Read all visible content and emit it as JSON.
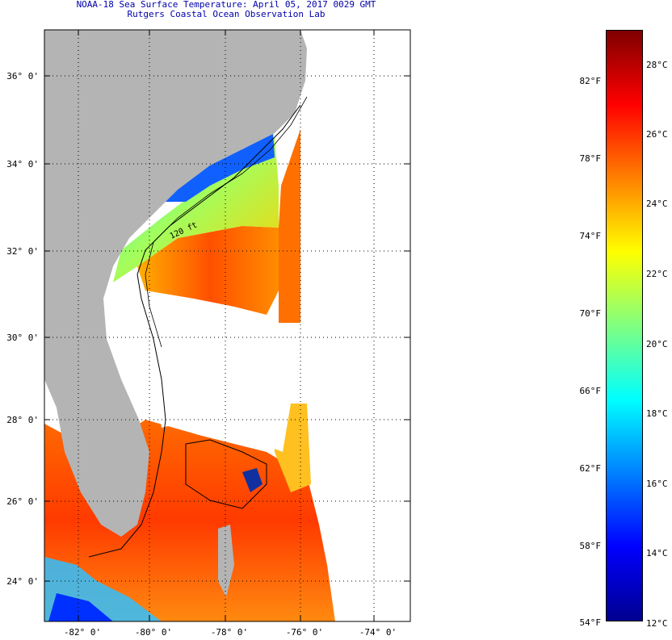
{
  "header": {
    "title": "NOAA-18 Sea Surface Temperature:  April 05, 2017 0029 GMT",
    "subtitle": "Rutgers Coastal Ocean Observation Lab"
  },
  "map": {
    "latitude_labels": [
      "36° 0'",
      "34° 0'",
      "32° 0'",
      "30° 0'",
      "28° 0'",
      "26° 0'",
      "24° 0'"
    ],
    "longitude_labels": [
      "-82° 0'",
      "-80° 0'",
      "-78° 0'",
      "-76° 0'",
      "-74° 0'"
    ],
    "isobath_label": "120 ft",
    "colors": {
      "land": "#b4b4b4",
      "cloud": "#ffffff",
      "warm": "#ff5a00",
      "cool": "#0a50ff"
    }
  },
  "colorbar": {
    "fahrenheit_labels": [
      "82°F",
      "78°F",
      "74°F",
      "70°F",
      "66°F",
      "62°F",
      "58°F",
      "54°F"
    ],
    "celsius_labels": [
      "28°C",
      "26°C",
      "24°C",
      "22°C",
      "20°C",
      "18°C",
      "16°C",
      "14°C",
      "12°C"
    ],
    "gradient_stops": [
      "#7f0000",
      "#ff0000",
      "#ff8000",
      "#ffff00",
      "#80ff80",
      "#00ffff",
      "#0080ff",
      "#0000ff",
      "#00008f"
    ]
  }
}
